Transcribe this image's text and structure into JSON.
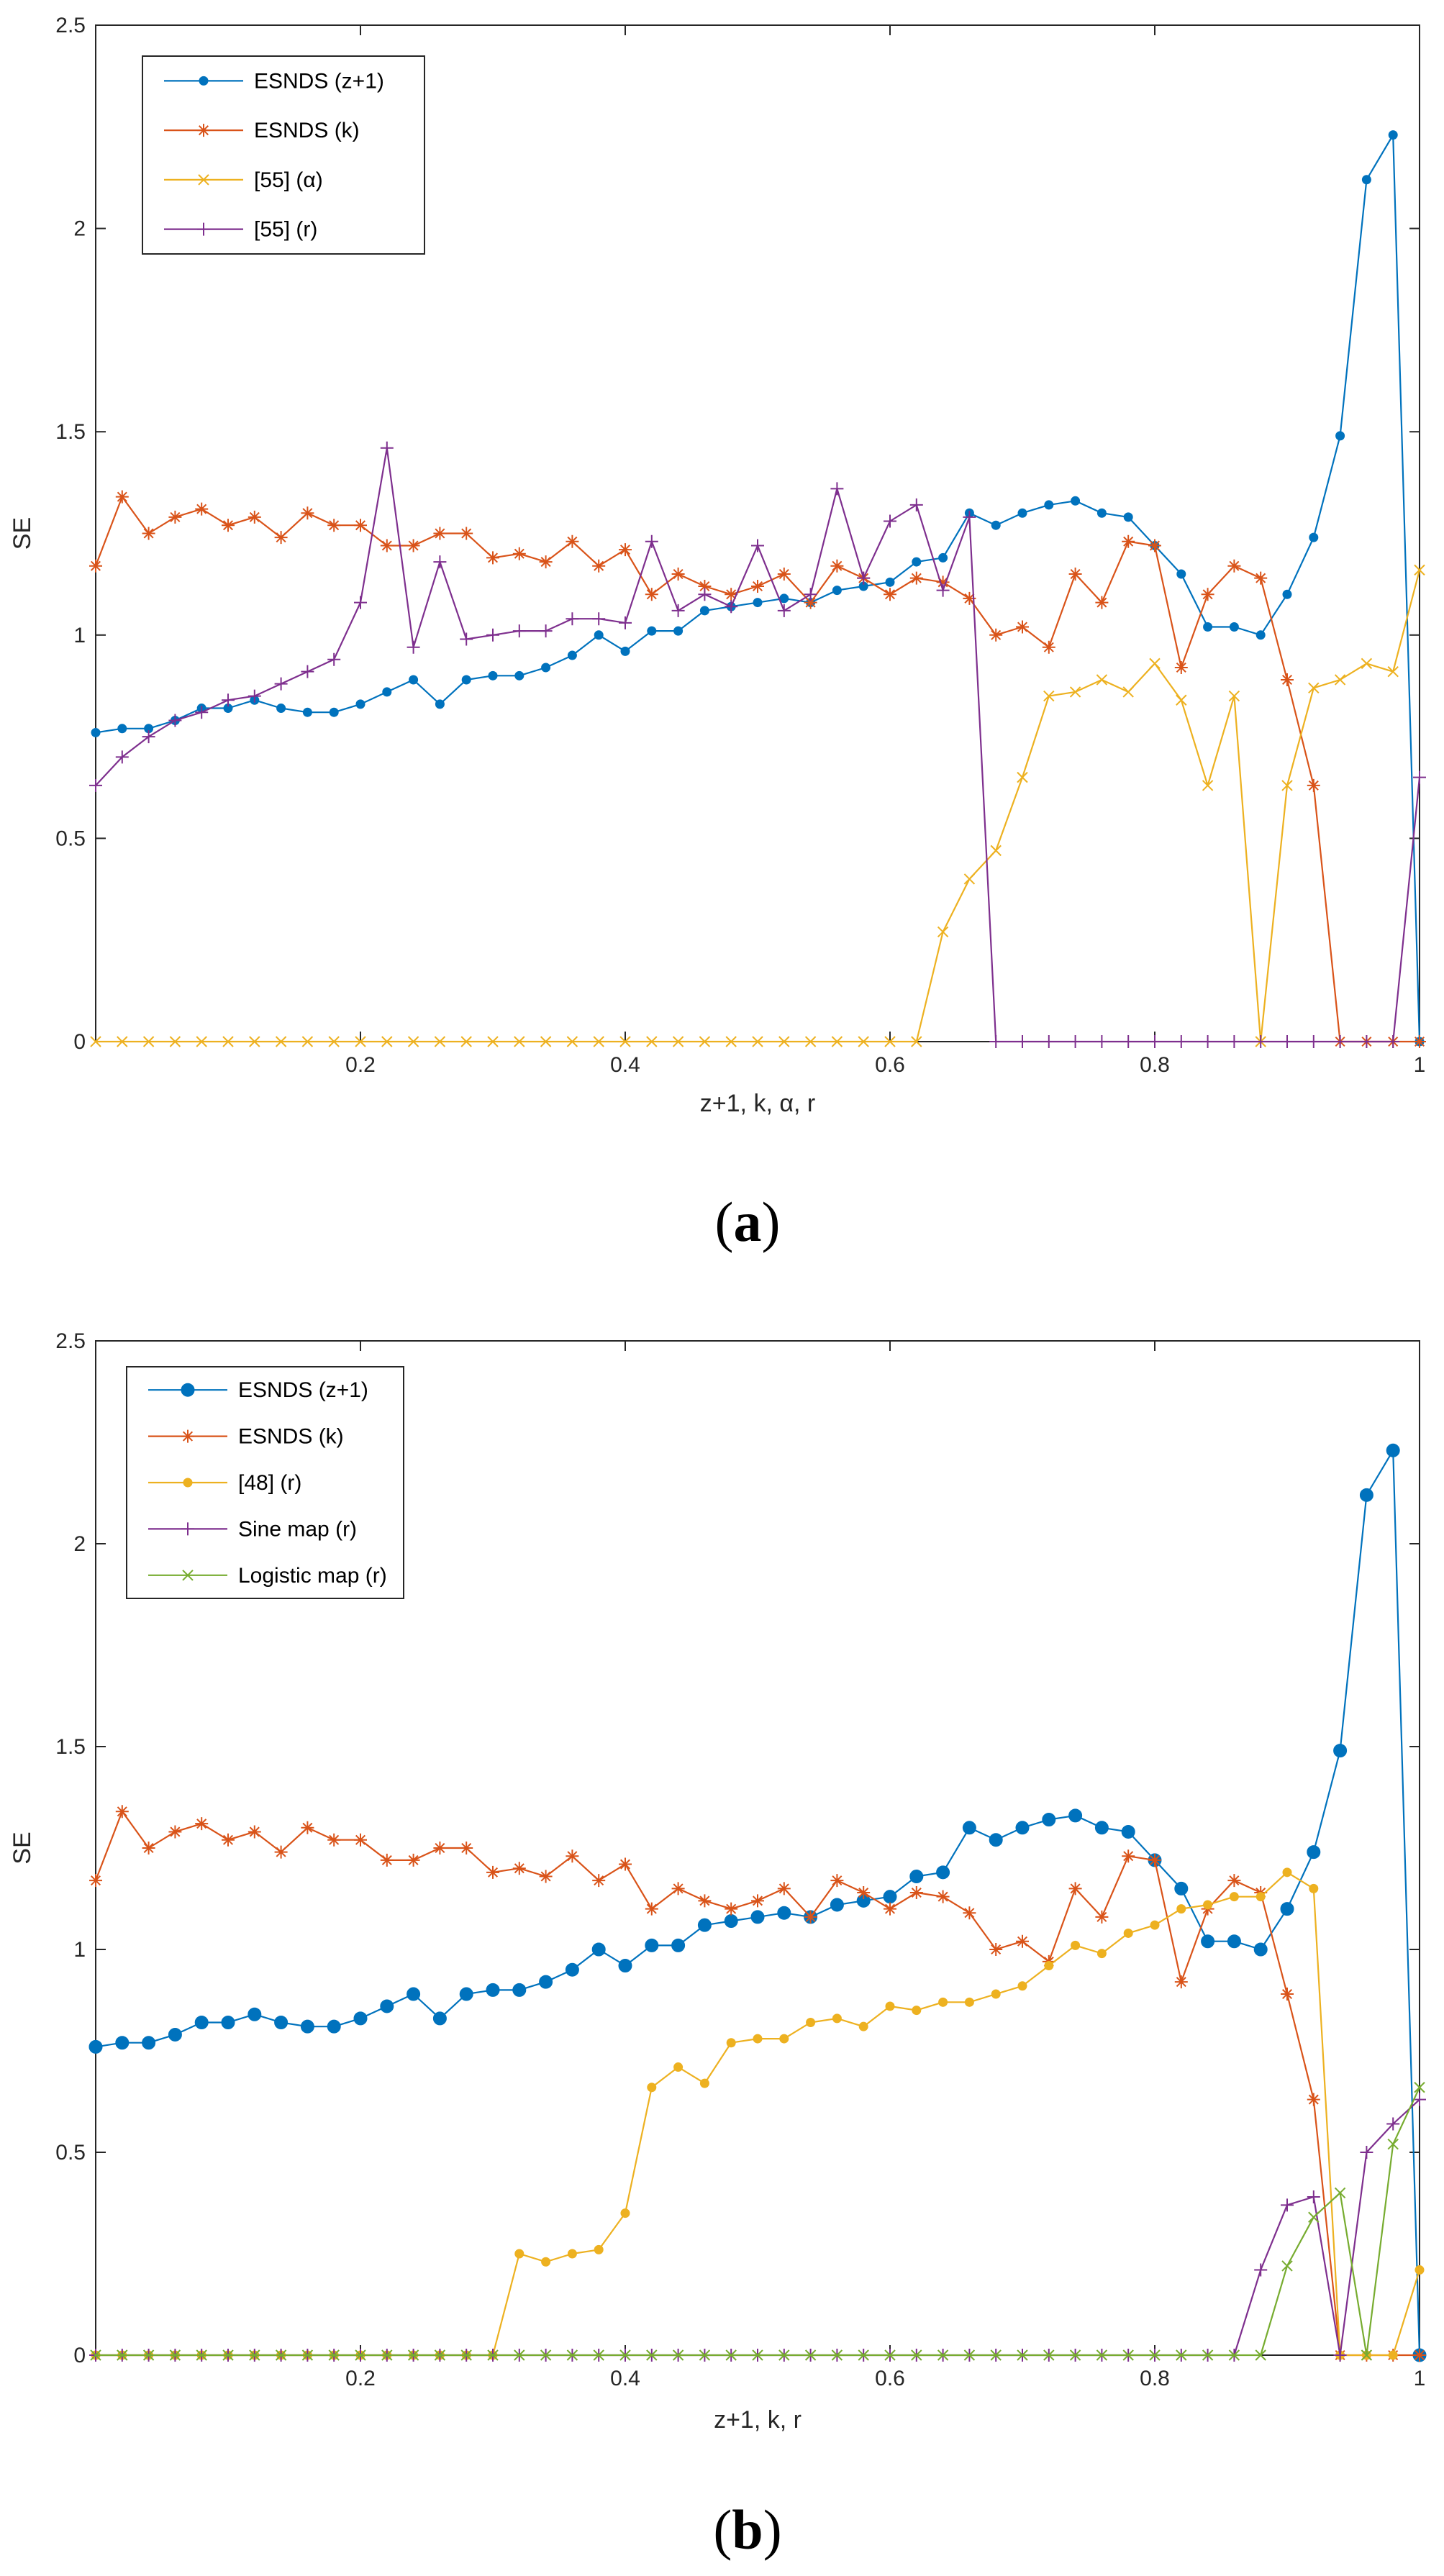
{
  "chart_data": [
    {
      "type": "line",
      "caption_letter": "a",
      "caption_open": "(",
      "caption_close": ")",
      "xlabel": "z+1, k, α, r",
      "ylabel": "SE",
      "xlim": [
        0,
        1
      ],
      "ylim": [
        0,
        2.5
      ],
      "xticks": [
        0.2,
        0.4,
        0.6,
        0.8,
        1
      ],
      "xtick_labels": [
        "0.2",
        "0.4",
        "0.6",
        "0.8",
        "1"
      ],
      "yticks": [
        0,
        0.5,
        1,
        1.5,
        2,
        2.5
      ],
      "ytick_labels": [
        "0",
        "0.5",
        "1",
        "1.5",
        "2",
        "2.5"
      ],
      "legend_position": "top-left",
      "series": [
        {
          "name": "ESNDS (z+1)",
          "color": "#0072BD",
          "marker": "dot",
          "x": [
            0,
            0.02,
            0.04,
            0.06,
            0.08,
            0.1,
            0.12,
            0.14,
            0.16,
            0.18,
            0.2,
            0.22,
            0.24,
            0.26,
            0.28,
            0.3,
            0.32,
            0.34,
            0.36,
            0.38,
            0.4,
            0.42,
            0.44,
            0.46,
            0.48,
            0.5,
            0.52,
            0.54,
            0.56,
            0.58,
            0.6,
            0.62,
            0.64,
            0.66,
            0.68,
            0.7,
            0.72,
            0.74,
            0.76,
            0.78,
            0.8,
            0.82,
            0.84,
            0.86,
            0.88,
            0.9,
            0.92,
            0.94,
            0.96,
            0.98,
            1.0
          ],
          "values": [
            0.76,
            0.77,
            0.77,
            0.79,
            0.82,
            0.82,
            0.84,
            0.82,
            0.81,
            0.81,
            0.83,
            0.86,
            0.89,
            0.83,
            0.89,
            0.9,
            0.9,
            0.92,
            0.95,
            1.0,
            0.96,
            1.01,
            1.01,
            1.06,
            1.07,
            1.08,
            1.09,
            1.08,
            1.11,
            1.12,
            1.13,
            1.18,
            1.19,
            1.3,
            1.27,
            1.3,
            1.32,
            1.33,
            1.3,
            1.29,
            1.22,
            1.15,
            1.02,
            1.02,
            1.0,
            1.1,
            1.24,
            1.49,
            2.12,
            2.23,
            0.0
          ]
        },
        {
          "name": "ESNDS (k)",
          "color": "#D95319",
          "marker": "asterisk",
          "x": [
            0,
            0.02,
            0.04,
            0.06,
            0.08,
            0.1,
            0.12,
            0.14,
            0.16,
            0.18,
            0.2,
            0.22,
            0.24,
            0.26,
            0.28,
            0.3,
            0.32,
            0.34,
            0.36,
            0.38,
            0.4,
            0.42,
            0.44,
            0.46,
            0.48,
            0.5,
            0.52,
            0.54,
            0.56,
            0.58,
            0.6,
            0.62,
            0.64,
            0.66,
            0.68,
            0.7,
            0.72,
            0.74,
            0.76,
            0.78,
            0.8,
            0.82,
            0.84,
            0.86,
            0.88,
            0.9,
            0.92,
            0.94,
            0.96,
            0.98,
            1.0
          ],
          "values": [
            1.17,
            1.34,
            1.25,
            1.29,
            1.31,
            1.27,
            1.29,
            1.24,
            1.3,
            1.27,
            1.27,
            1.22,
            1.22,
            1.25,
            1.25,
            1.19,
            1.2,
            1.18,
            1.23,
            1.17,
            1.21,
            1.1,
            1.15,
            1.12,
            1.1,
            1.12,
            1.15,
            1.08,
            1.17,
            1.14,
            1.1,
            1.14,
            1.13,
            1.09,
            1.0,
            1.02,
            0.97,
            1.15,
            1.08,
            1.23,
            1.22,
            0.92,
            1.1,
            1.17,
            1.14,
            0.89,
            0.63,
            0.0,
            0.0,
            0.0,
            0.0
          ]
        },
        {
          "name": "[55] (α)",
          "color": "#EDB120",
          "marker": "x",
          "x": [
            0,
            0.02,
            0.04,
            0.06,
            0.08,
            0.1,
            0.12,
            0.14,
            0.16,
            0.18,
            0.2,
            0.22,
            0.24,
            0.26,
            0.28,
            0.3,
            0.32,
            0.34,
            0.36,
            0.38,
            0.4,
            0.42,
            0.44,
            0.46,
            0.48,
            0.5,
            0.52,
            0.54,
            0.56,
            0.58,
            0.6,
            0.62,
            0.64,
            0.66,
            0.68,
            0.7,
            0.72,
            0.74,
            0.76,
            0.78,
            0.8,
            0.82,
            0.84,
            0.86,
            0.88,
            0.9,
            0.92,
            0.94,
            0.96,
            0.98,
            1.0
          ],
          "values": [
            0,
            0,
            0,
            0,
            0,
            0,
            0,
            0,
            0,
            0,
            0,
            0,
            0,
            0,
            0,
            0,
            0,
            0,
            0,
            0,
            0,
            0,
            0,
            0,
            0,
            0,
            0,
            0,
            0,
            0,
            0,
            0,
            0.27,
            0.4,
            0.47,
            0.65,
            0.85,
            0.86,
            0.89,
            0.86,
            0.93,
            0.84,
            0.63,
            0.85,
            0.0,
            0.63,
            0.87,
            0.89,
            0.93,
            0.91,
            1.16
          ]
        },
        {
          "name": "[55] (r)",
          "color": "#7E2F8E",
          "marker": "plus",
          "x": [
            0,
            0.02,
            0.04,
            0.06,
            0.08,
            0.1,
            0.12,
            0.14,
            0.16,
            0.18,
            0.2,
            0.22,
            0.24,
            0.26,
            0.28,
            0.3,
            0.32,
            0.34,
            0.36,
            0.38,
            0.4,
            0.42,
            0.44,
            0.46,
            0.48,
            0.5,
            0.52,
            0.54,
            0.56,
            0.58,
            0.6,
            0.62,
            0.64,
            0.66,
            0.68,
            0.7,
            0.72,
            0.74,
            0.76,
            0.78,
            0.8,
            0.82,
            0.84,
            0.86,
            0.88,
            0.9,
            0.92,
            0.94,
            0.96,
            0.98,
            1.0
          ],
          "values": [
            0.63,
            0.7,
            0.75,
            0.79,
            0.81,
            0.84,
            0.85,
            0.88,
            0.91,
            0.94,
            1.08,
            1.46,
            0.97,
            1.18,
            0.99,
            1.0,
            1.01,
            1.01,
            1.04,
            1.04,
            1.03,
            1.23,
            1.06,
            1.1,
            1.07,
            1.22,
            1.06,
            1.1,
            1.36,
            1.14,
            1.28,
            1.32,
            1.11,
            1.29,
            0.0,
            0.0,
            0.0,
            0.0,
            0.0,
            0.0,
            0.0,
            0.0,
            0.0,
            0.0,
            0.0,
            0.0,
            0.0,
            0.0,
            0.0,
            0.0,
            0.65
          ]
        }
      ]
    },
    {
      "type": "line",
      "caption_letter": "b",
      "caption_open": "(",
      "caption_close": ")",
      "xlabel": "z+1, k, r",
      "ylabel": "SE",
      "xlim": [
        0,
        1
      ],
      "ylim": [
        0,
        2.5
      ],
      "xticks": [
        0.2,
        0.4,
        0.6,
        0.8,
        1
      ],
      "xtick_labels": [
        "0.2",
        "0.4",
        "0.6",
        "0.8",
        "1"
      ],
      "yticks": [
        0,
        0.5,
        1,
        1.5,
        2,
        2.5
      ],
      "ytick_labels": [
        "0",
        "0.5",
        "1",
        "1.5",
        "2",
        "2.5"
      ],
      "legend_position": "top-left",
      "series": [
        {
          "name": "ESNDS (z+1)",
          "color": "#0072BD",
          "marker": "bigdot",
          "x": [
            0,
            0.02,
            0.04,
            0.06,
            0.08,
            0.1,
            0.12,
            0.14,
            0.16,
            0.18,
            0.2,
            0.22,
            0.24,
            0.26,
            0.28,
            0.3,
            0.32,
            0.34,
            0.36,
            0.38,
            0.4,
            0.42,
            0.44,
            0.46,
            0.48,
            0.5,
            0.52,
            0.54,
            0.56,
            0.58,
            0.6,
            0.62,
            0.64,
            0.66,
            0.68,
            0.7,
            0.72,
            0.74,
            0.76,
            0.78,
            0.8,
            0.82,
            0.84,
            0.86,
            0.88,
            0.9,
            0.92,
            0.94,
            0.96,
            0.98,
            1.0
          ],
          "values": [
            0.76,
            0.77,
            0.77,
            0.79,
            0.82,
            0.82,
            0.84,
            0.82,
            0.81,
            0.81,
            0.83,
            0.86,
            0.89,
            0.83,
            0.89,
            0.9,
            0.9,
            0.92,
            0.95,
            1.0,
            0.96,
            1.01,
            1.01,
            1.06,
            1.07,
            1.08,
            1.09,
            1.08,
            1.11,
            1.12,
            1.13,
            1.18,
            1.19,
            1.3,
            1.27,
            1.3,
            1.32,
            1.33,
            1.3,
            1.29,
            1.22,
            1.15,
            1.02,
            1.02,
            1.0,
            1.1,
            1.24,
            1.49,
            2.12,
            2.23,
            0.0
          ]
        },
        {
          "name": "ESNDS (k)",
          "color": "#D95319",
          "marker": "asterisk",
          "x": [
            0,
            0.02,
            0.04,
            0.06,
            0.08,
            0.1,
            0.12,
            0.14,
            0.16,
            0.18,
            0.2,
            0.22,
            0.24,
            0.26,
            0.28,
            0.3,
            0.32,
            0.34,
            0.36,
            0.38,
            0.4,
            0.42,
            0.44,
            0.46,
            0.48,
            0.5,
            0.52,
            0.54,
            0.56,
            0.58,
            0.6,
            0.62,
            0.64,
            0.66,
            0.68,
            0.7,
            0.72,
            0.74,
            0.76,
            0.78,
            0.8,
            0.82,
            0.84,
            0.86,
            0.88,
            0.9,
            0.92,
            0.94,
            0.96,
            0.98,
            1.0
          ],
          "values": [
            1.17,
            1.34,
            1.25,
            1.29,
            1.31,
            1.27,
            1.29,
            1.24,
            1.3,
            1.27,
            1.27,
            1.22,
            1.22,
            1.25,
            1.25,
            1.19,
            1.2,
            1.18,
            1.23,
            1.17,
            1.21,
            1.1,
            1.15,
            1.12,
            1.1,
            1.12,
            1.15,
            1.08,
            1.17,
            1.14,
            1.1,
            1.14,
            1.13,
            1.09,
            1.0,
            1.02,
            0.97,
            1.15,
            1.08,
            1.23,
            1.22,
            0.92,
            1.1,
            1.17,
            1.14,
            0.89,
            0.63,
            0.0,
            0.0,
            0.0,
            0.0
          ]
        },
        {
          "name": "[48] (r)",
          "color": "#EDB120",
          "marker": "dot",
          "x": [
            0,
            0.02,
            0.04,
            0.06,
            0.08,
            0.1,
            0.12,
            0.14,
            0.16,
            0.18,
            0.2,
            0.22,
            0.24,
            0.26,
            0.28,
            0.3,
            0.32,
            0.34,
            0.36,
            0.38,
            0.4,
            0.42,
            0.44,
            0.46,
            0.48,
            0.5,
            0.52,
            0.54,
            0.56,
            0.58,
            0.6,
            0.62,
            0.64,
            0.66,
            0.68,
            0.7,
            0.72,
            0.74,
            0.76,
            0.78,
            0.8,
            0.82,
            0.84,
            0.86,
            0.88,
            0.9,
            0.92,
            0.94,
            0.96,
            0.98,
            1.0
          ],
          "values": [
            0,
            0,
            0,
            0,
            0,
            0,
            0,
            0,
            0,
            0,
            0,
            0,
            0,
            0,
            0,
            0,
            0.25,
            0.23,
            0.25,
            0.26,
            0.35,
            0.66,
            0.71,
            0.67,
            0.77,
            0.78,
            0.78,
            0.82,
            0.83,
            0.81,
            0.86,
            0.85,
            0.87,
            0.87,
            0.89,
            0.91,
            0.96,
            1.01,
            0.99,
            1.04,
            1.06,
            1.1,
            1.11,
            1.13,
            1.13,
            1.19,
            1.15,
            0.0,
            0.0,
            0.0,
            0.21
          ]
        },
        {
          "name": "Sine map (r)",
          "color": "#7E2F8E",
          "marker": "plus",
          "x": [
            0,
            0.02,
            0.04,
            0.06,
            0.08,
            0.1,
            0.12,
            0.14,
            0.16,
            0.18,
            0.2,
            0.22,
            0.24,
            0.26,
            0.28,
            0.3,
            0.32,
            0.34,
            0.36,
            0.38,
            0.4,
            0.42,
            0.44,
            0.46,
            0.48,
            0.5,
            0.52,
            0.54,
            0.56,
            0.58,
            0.6,
            0.62,
            0.64,
            0.66,
            0.68,
            0.7,
            0.72,
            0.74,
            0.76,
            0.78,
            0.8,
            0.82,
            0.84,
            0.86,
            0.88,
            0.9,
            0.92,
            0.94,
            0.96,
            0.98,
            1.0
          ],
          "values": [
            0,
            0,
            0,
            0,
            0,
            0,
            0,
            0,
            0,
            0,
            0,
            0,
            0,
            0,
            0,
            0,
            0,
            0,
            0,
            0,
            0,
            0,
            0,
            0,
            0,
            0,
            0,
            0,
            0,
            0,
            0,
            0,
            0,
            0,
            0,
            0,
            0,
            0,
            0,
            0,
            0,
            0,
            0,
            0,
            0.21,
            0.37,
            0.39,
            0.0,
            0.5,
            0.57,
            0.63
          ]
        },
        {
          "name": "Logistic  map (r)",
          "color": "#77AC30",
          "marker": "x",
          "x": [
            0,
            0.02,
            0.04,
            0.06,
            0.08,
            0.1,
            0.12,
            0.14,
            0.16,
            0.18,
            0.2,
            0.22,
            0.24,
            0.26,
            0.28,
            0.3,
            0.32,
            0.34,
            0.36,
            0.38,
            0.4,
            0.42,
            0.44,
            0.46,
            0.48,
            0.5,
            0.52,
            0.54,
            0.56,
            0.58,
            0.6,
            0.62,
            0.64,
            0.66,
            0.68,
            0.7,
            0.72,
            0.74,
            0.76,
            0.78,
            0.8,
            0.82,
            0.84,
            0.86,
            0.88,
            0.9,
            0.92,
            0.94,
            0.96,
            0.98,
            1.0
          ],
          "values": [
            0,
            0,
            0,
            0,
            0,
            0,
            0,
            0,
            0,
            0,
            0,
            0,
            0,
            0,
            0,
            0,
            0,
            0,
            0,
            0,
            0,
            0,
            0,
            0,
            0,
            0,
            0,
            0,
            0,
            0,
            0,
            0,
            0,
            0,
            0,
            0,
            0,
            0,
            0,
            0,
            0,
            0,
            0,
            0,
            0,
            0.22,
            0.34,
            0.4,
            0.0,
            0.52,
            0.66
          ]
        }
      ]
    }
  ]
}
